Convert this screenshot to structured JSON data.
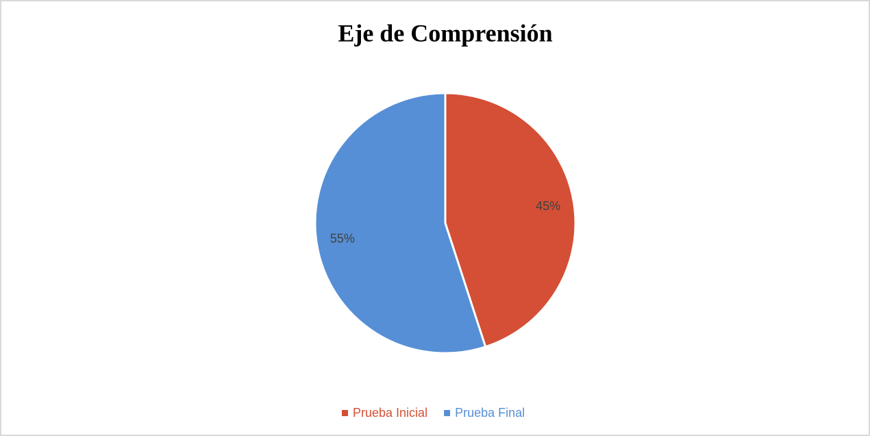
{
  "chart_data": {
    "type": "pie",
    "title": "Eje de Comprensión",
    "categories": [
      "Prueba Inicial",
      "Prueba Final"
    ],
    "values": [
      45,
      55
    ],
    "value_labels": [
      "45%",
      "55%"
    ],
    "colors": [
      "#d44f35",
      "#568fd6"
    ],
    "legend": "bottom"
  }
}
